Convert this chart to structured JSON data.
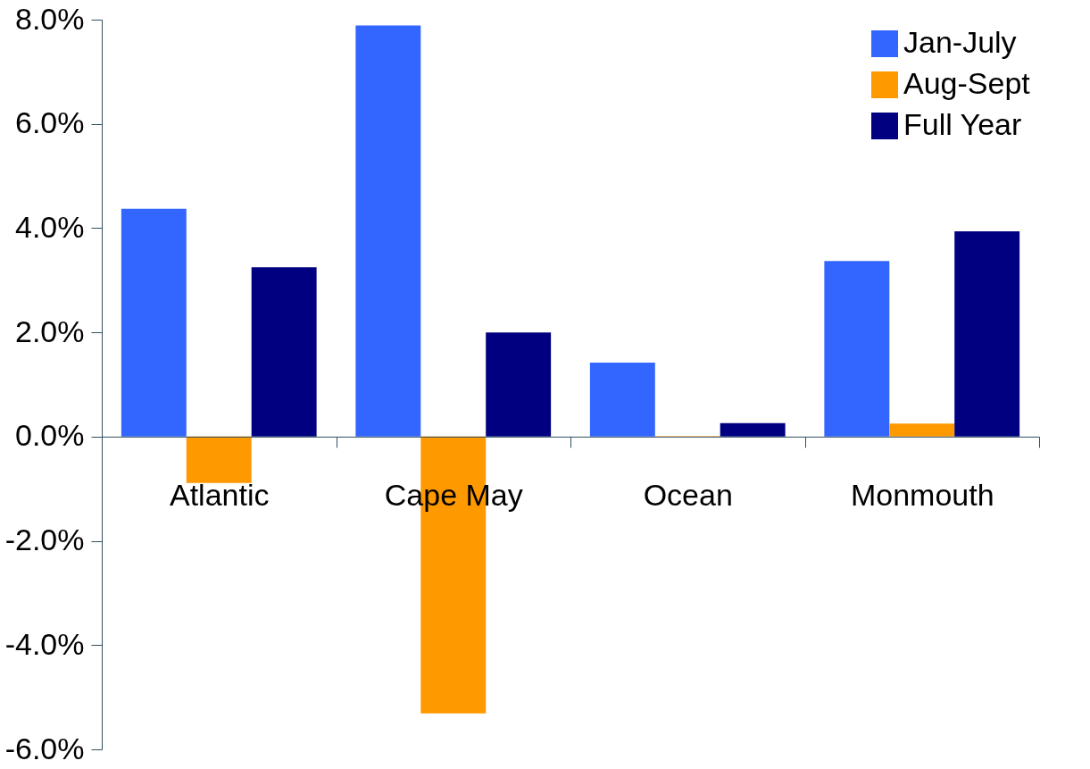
{
  "chart_data": {
    "type": "bar",
    "categories": [
      "Atlantic",
      "Cape May",
      "Ocean",
      "Monmouth"
    ],
    "series": [
      {
        "name": "Jan-July",
        "color": "#3366ff",
        "values": [
          4.37,
          7.89,
          1.42,
          3.37
        ]
      },
      {
        "name": "Aug-Sept",
        "color": "#ff9900",
        "values": [
          -0.89,
          -5.31,
          0.01,
          0.25
        ]
      },
      {
        "name": "Full Year",
        "color": "#000080",
        "values": [
          3.25,
          2.0,
          0.26,
          3.94
        ]
      }
    ],
    "ylim": [
      -6,
      8
    ],
    "yticks": [
      {
        "value": -6,
        "label": "-6.0%"
      },
      {
        "value": -4,
        "label": "-4.0%"
      },
      {
        "value": -2,
        "label": "-2.0%"
      },
      {
        "value": 0,
        "label": "0.0%"
      },
      {
        "value": 2,
        "label": "2.0%"
      },
      {
        "value": 4,
        "label": "4.0%"
      },
      {
        "value": 6,
        "label": "6.0%"
      },
      {
        "value": 8,
        "label": "8.0%"
      }
    ],
    "grid": false,
    "legend": "top right"
  }
}
